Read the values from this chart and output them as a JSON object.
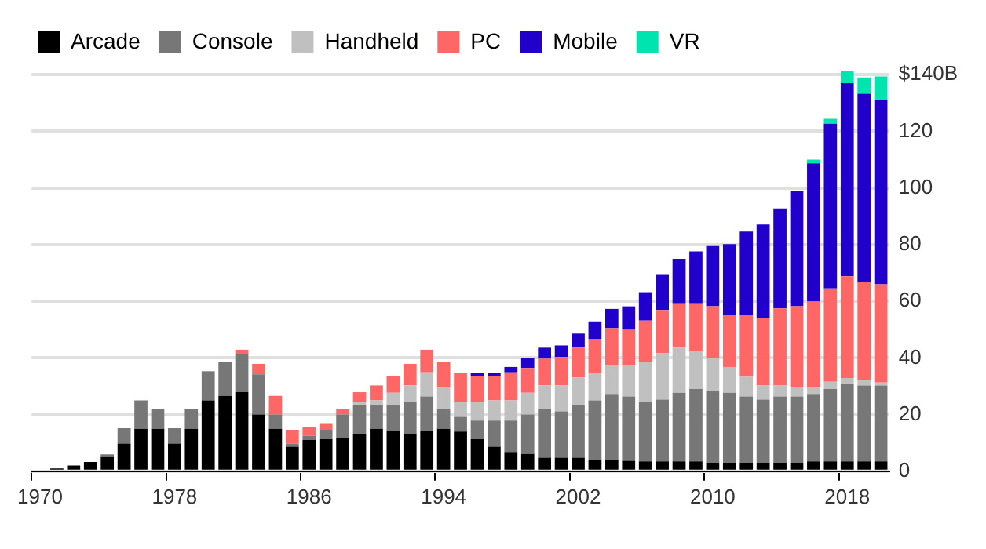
{
  "chart_data": {
    "type": "bar",
    "stacked": true,
    "categories": [
      "1970",
      null,
      null,
      null,
      null,
      null,
      null,
      null,
      "1978",
      null,
      null,
      null,
      null,
      null,
      null,
      null,
      "1986",
      null,
      null,
      null,
      null,
      null,
      null,
      null,
      "1994",
      null,
      null,
      null,
      null,
      null,
      null,
      null,
      "2002",
      null,
      null,
      null,
      null,
      null,
      null,
      null,
      "2010",
      null,
      null,
      null,
      null,
      null,
      null,
      null,
      "2018",
      null,
      null
    ],
    "series": [
      {
        "name": "Arcade",
        "color": "#000000",
        "values": [
          0,
          1,
          2,
          3.3,
          5,
          9.8,
          15,
          15,
          9.8,
          15,
          25,
          26.6,
          27.9,
          20,
          15,
          8.7,
          11,
          11.3,
          11.8,
          13,
          15,
          14.4,
          13,
          14.2,
          15,
          14,
          11.3,
          8.7,
          6.8,
          6.1,
          4.8,
          4.8,
          4.8,
          4.1,
          4.1,
          3.7,
          3.5,
          3.5,
          3.5,
          3.5,
          3,
          3,
          3,
          3,
          3,
          3,
          3.5,
          3.5,
          3.5,
          3.5,
          3.5
        ]
      },
      {
        "name": "Console",
        "color": "#777777",
        "values": [
          0,
          0,
          0,
          0,
          1,
          5.4,
          10,
          7,
          5.4,
          7,
          10.3,
          12,
          13.5,
          14.2,
          5,
          1.1,
          1.5,
          3.3,
          8.2,
          10.3,
          8.3,
          8.9,
          11.4,
          12.2,
          6.8,
          5.2,
          6.6,
          9.2,
          11.1,
          13.9,
          17,
          16.3,
          18.5,
          20.9,
          22.9,
          22.7,
          20.9,
          21.8,
          24.2,
          25.5,
          25.3,
          24.7,
          23.4,
          22.3,
          23.4,
          23.4,
          23.5,
          25.5,
          27.4,
          26.8,
          26.8
        ]
      },
      {
        "name": "Handheld",
        "color": "#c0c0c0",
        "values": [
          0,
          0,
          0,
          0,
          0,
          0,
          0,
          0,
          0,
          0,
          0,
          0,
          0,
          0,
          0,
          0,
          0,
          0,
          0,
          1.1,
          1.7,
          4.4,
          5.9,
          8.5,
          7.8,
          5.2,
          6.5,
          7.1,
          7.1,
          7.7,
          8.5,
          9.2,
          9.8,
          9.6,
          10.5,
          11.1,
          14.2,
          16.3,
          15.9,
          13.5,
          11.6,
          9.1,
          6.9,
          5,
          3.9,
          3.2,
          2.6,
          2.6,
          2,
          1.9,
          1
        ]
      },
      {
        "name": "PC",
        "color": "#ff6666",
        "values": [
          0,
          0,
          0,
          0,
          0,
          0,
          0,
          0,
          0,
          0,
          0,
          0,
          1.5,
          3.7,
          6.6,
          4.8,
          3,
          2.4,
          2,
          3.5,
          5.3,
          5.8,
          7.6,
          8,
          9,
          10.2,
          9.1,
          8.5,
          9.9,
          8.7,
          9.4,
          10,
          10.5,
          12,
          13,
          12.4,
          14.6,
          15.3,
          15.7,
          16.8,
          18.3,
          18.1,
          21.6,
          23.9,
          27.2,
          28.6,
          30.3,
          32.9,
          35.9,
          34.6,
          34.7
        ]
      },
      {
        "name": "Mobile",
        "color": "#2200cc",
        "values": [
          0,
          0,
          0,
          0,
          0,
          0,
          0,
          0,
          0,
          0,
          0,
          0,
          0,
          0,
          0,
          0,
          0,
          0,
          0,
          0,
          0,
          0,
          0,
          0,
          0,
          0,
          1.1,
          1.1,
          1.9,
          3.7,
          3.9,
          4.1,
          5,
          6.3,
          6.8,
          8.3,
          10,
          12.4,
          15.7,
          18.3,
          21.3,
          25.3,
          29.7,
          32.9,
          35.3,
          40.9,
          48.8,
          58.2,
          68.2,
          66.5,
          65.1
        ]
      },
      {
        "name": "VR",
        "color": "#00e5b0",
        "values": [
          0,
          0,
          0,
          0,
          0,
          0,
          0,
          0,
          0,
          0,
          0,
          0,
          0,
          0,
          0,
          0,
          0,
          0,
          0,
          0,
          0,
          0,
          0,
          0,
          0,
          0,
          0,
          0,
          0,
          0,
          0,
          0,
          0,
          0,
          0,
          0,
          0,
          0,
          0,
          0,
          0,
          0,
          0,
          0,
          0,
          0,
          1.3,
          1.7,
          4.4,
          5.7,
          8.3
        ]
      }
    ],
    "ylim": [
      0,
      142
    ],
    "yticks": [
      0,
      20,
      40,
      60,
      80,
      100,
      120,
      {
        "value": 140,
        "label": "$140B"
      }
    ],
    "grid": "y",
    "legend": "top left"
  }
}
